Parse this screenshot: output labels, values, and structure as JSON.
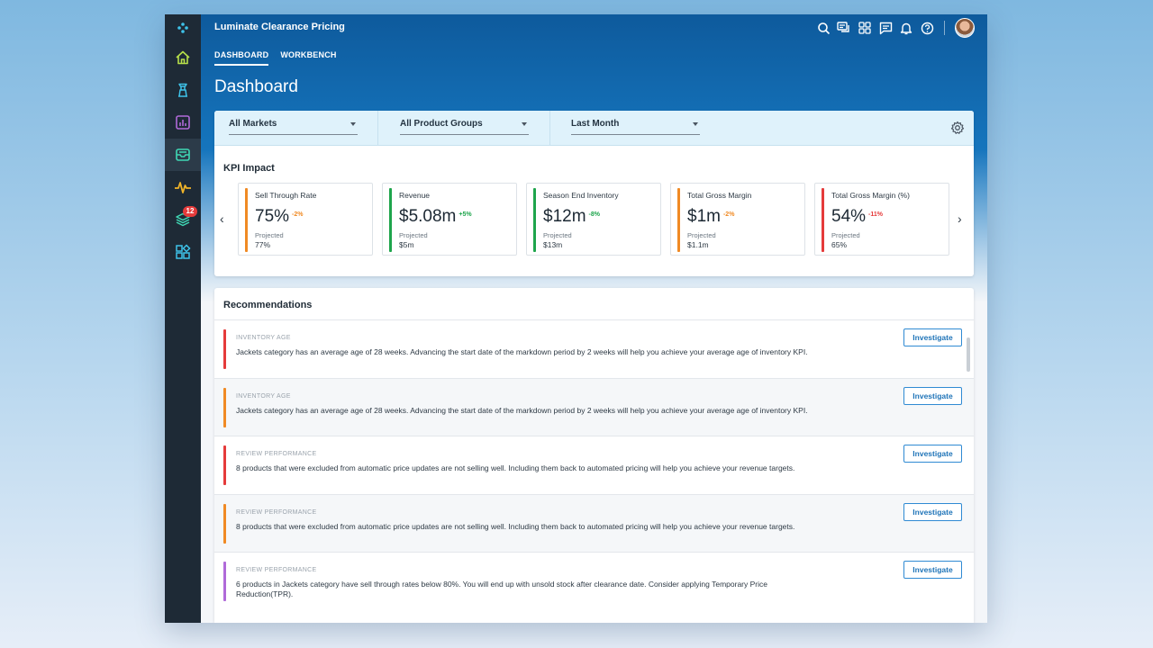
{
  "app": {
    "title": "Luminate Clearance Pricing"
  },
  "sidebar": {
    "items": [
      {
        "name": "logo-icon"
      },
      {
        "name": "home-icon"
      },
      {
        "name": "tower-icon"
      },
      {
        "name": "bar-chart-icon"
      },
      {
        "name": "inbox-icon"
      },
      {
        "name": "pulse-icon"
      },
      {
        "name": "layers-icon",
        "badge": "12"
      },
      {
        "name": "widgets-icon"
      }
    ],
    "colors": {
      "home": "#b7e04a",
      "tower": "#3ec3ea",
      "chart": "#b06ad9",
      "inbox": "#3fd7b4",
      "pulse": "#f0b429",
      "layers": "#3fd7b4",
      "widgets": "#3ec3ea"
    }
  },
  "header": {
    "icons": [
      "search-icon",
      "chat-icon",
      "apps-grid-icon",
      "message-icon",
      "bell-icon",
      "help-icon"
    ]
  },
  "tabs": [
    {
      "label": "DASHBOARD",
      "active": true
    },
    {
      "label": "WORKBENCH",
      "active": false
    }
  ],
  "page_title": "Dashboard",
  "filters": [
    {
      "label": "All Markets"
    },
    {
      "label": "All Product Groups"
    },
    {
      "label": "Last Month"
    }
  ],
  "kpi": {
    "title": "KPI Impact",
    "cards": [
      {
        "name": "Sell Through Rate",
        "value": "75%",
        "delta": "-2%",
        "delta_color": "#f08a24",
        "bar_color": "#f08a24",
        "proj_label": "Projected",
        "proj_value": "77%"
      },
      {
        "name": "Revenue",
        "value": "$5.08m",
        "delta": "+5%",
        "delta_color": "#1ea54c",
        "bar_color": "#1ea54c",
        "proj_label": "Projected",
        "proj_value": "$5m"
      },
      {
        "name": "Season End Inventory",
        "value": "$12m",
        "delta": "-8%",
        "delta_color": "#1ea54c",
        "bar_color": "#1ea54c",
        "proj_label": "Projected",
        "proj_value": "$13m"
      },
      {
        "name": "Total Gross Margin",
        "value": "$1m",
        "delta": "-2%",
        "delta_color": "#f08a24",
        "bar_color": "#f08a24",
        "proj_label": "Projected",
        "proj_value": "$1.1m"
      },
      {
        "name": "Total Gross Margin (%)",
        "value": "54%",
        "delta": "-11%",
        "delta_color": "#e53b3b",
        "bar_color": "#e53b3b",
        "proj_label": "Projected",
        "proj_value": "65%"
      }
    ]
  },
  "recommendations": {
    "title": "Recommendations",
    "button_label": "Investigate",
    "items": [
      {
        "category": "INVENTORY AGE",
        "text": "Jackets category has an average age of 28 weeks. Advancing the start date of the markdown period by 2 weeks will help you achieve your average age of inventory KPI.",
        "color": "#e53b3b"
      },
      {
        "category": "INVENTORY AGE",
        "text": "Jackets category has an average age of 28 weeks. Advancing the start date of the markdown period by 2 weeks will help you achieve your average age of inventory KPI.",
        "color": "#f08a24"
      },
      {
        "category": "REVIEW PERFORMANCE",
        "text": "8 products that were excluded from automatic price updates are not selling well. Including them back to automated pricing will help you achieve your revenue targets.",
        "color": "#e53b3b"
      },
      {
        "category": "REVIEW PERFORMANCE",
        "text": "8 products that were excluded from automatic price updates are not selling well. Including them back to automated pricing will help you achieve your revenue targets.",
        "color": "#f08a24"
      },
      {
        "category": "REVIEW PERFORMANCE",
        "text": "6 products in Jackets category have sell through rates below 80%. You will end up with unsold stock after clearance date. Consider applying Temporary Price Reduction(TPR).",
        "color": "#b06ad9"
      }
    ]
  }
}
